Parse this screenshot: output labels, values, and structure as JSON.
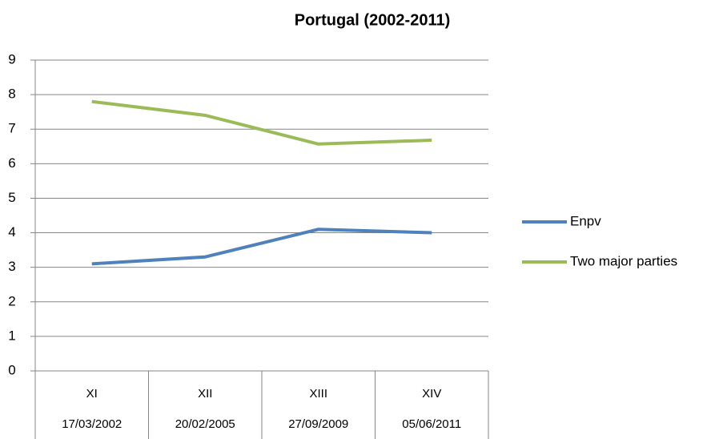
{
  "chart_data": {
    "type": "line",
    "title": "Portugal (2002-2011)",
    "categories": [
      "XI",
      "XII",
      "XIII",
      "XIV"
    ],
    "sub_categories": [
      "17/03/2002",
      "20/02/2005",
      "27/09/2009",
      "05/06/2011"
    ],
    "series": [
      {
        "name": "Enpv",
        "color": "#4f81bd",
        "values": [
          3.1,
          3.3,
          4.1,
          4.0
        ]
      },
      {
        "name": "Two major parties",
        "color": "#9bbb59",
        "values": [
          7.8,
          7.4,
          6.57,
          6.68
        ]
      }
    ],
    "ylim": [
      0,
      9
    ],
    "yticks": [
      0,
      1,
      2,
      3,
      4,
      5,
      6,
      7,
      8,
      9
    ],
    "grid": true,
    "legend": "right"
  }
}
